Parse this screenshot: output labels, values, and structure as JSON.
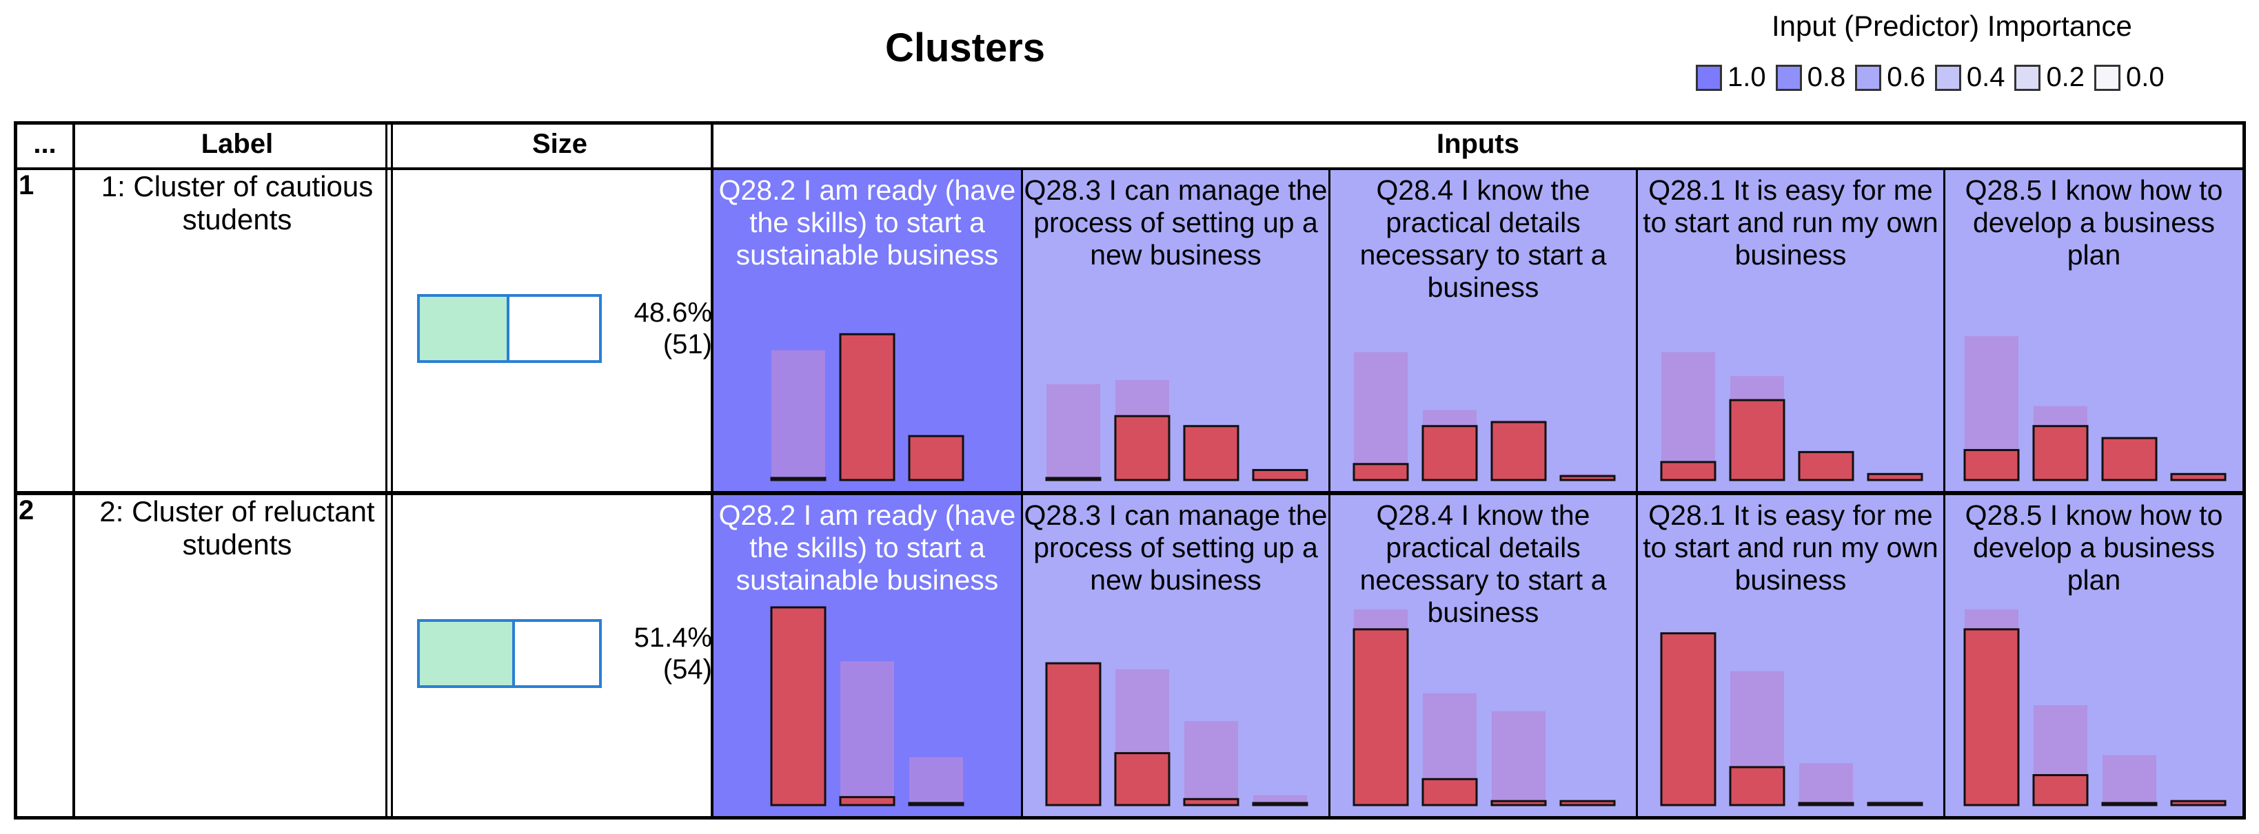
{
  "title": "Clusters",
  "legend": {
    "title": "Input (Predictor) Importance",
    "items": [
      {
        "label": "1.0",
        "color": "#7b7bfb"
      },
      {
        "label": "0.8",
        "color": "#9090fb"
      },
      {
        "label": "0.6",
        "color": "#aaaaf8"
      },
      {
        "label": "0.4",
        "color": "#c4c4f8"
      },
      {
        "label": "0.2",
        "color": "#dcdcf6"
      },
      {
        "label": "0.0",
        "color": "#f6f6fa"
      }
    ]
  },
  "headers": {
    "id": "...",
    "label": "Label",
    "size": "Size",
    "inputs": "Inputs"
  },
  "colors": {
    "bar": "#d64f5e",
    "ghost": "#b48adc"
  },
  "chart_data": {
    "type": "table",
    "inputs": [
      {
        "name": "Q28.2  I am ready (have the skills) to start a sustainable business",
        "importance": 1.0,
        "bg": "#7b7bfb"
      },
      {
        "name": "Q28.3  I can manage the process of setting up a new business",
        "importance": 0.6,
        "bg": "#aaaaf8"
      },
      {
        "name": "Q28.4 I know the practical details necessary to start a business",
        "importance": 0.6,
        "bg": "#aaaaf8"
      },
      {
        "name": "Q28.1  It is easy for me to start and run my own business",
        "importance": 0.6,
        "bg": "#aaaaf8"
      },
      {
        "name": "Q28.5  I know how to develop a business plan",
        "importance": 0.6,
        "bg": "#aaaaf8"
      }
    ],
    "clusters": [
      {
        "id": "1",
        "label": "1: Cluster of cautious students",
        "size_pct": 48.6,
        "size_pct_text": "48.6%",
        "count_text": "(51)",
        "distributions": [
          {
            "cluster": [
              0,
              0.73,
              0.22
            ],
            "overall": [
              0.65,
              0.38,
              0.12
            ]
          },
          {
            "cluster": [
              0,
              0.32,
              0.27,
              0.05
            ],
            "overall": [
              0.48,
              0.5,
              0.27,
              0.04
            ]
          },
          {
            "cluster": [
              0.08,
              0.27,
              0.29,
              0.02
            ],
            "overall": [
              0.64,
              0.35,
              0.3,
              0.03
            ]
          },
          {
            "cluster": [
              0.09,
              0.4,
              0.14,
              0.03
            ],
            "overall": [
              0.64,
              0.52,
              0.14,
              0.03
            ]
          },
          {
            "cluster": [
              0.15,
              0.27,
              0.21,
              0.03
            ],
            "overall": [
              0.72,
              0.37,
              0.21,
              0.03
            ]
          }
        ]
      },
      {
        "id": "2",
        "label": "2: Cluster of reluctant students",
        "size_pct": 51.4,
        "size_pct_text": "51.4%",
        "count_text": "(54)",
        "distributions": [
          {
            "cluster": [
              0.99,
              0.04,
              0
            ],
            "overall": [
              0.66,
              0.72,
              0.24
            ]
          },
          {
            "cluster": [
              0.71,
              0.26,
              0.03,
              0
            ],
            "overall": [
              0.48,
              0.68,
              0.42,
              0.05
            ]
          },
          {
            "cluster": [
              0.88,
              0.13,
              0.02,
              0.02
            ],
            "overall": [
              0.98,
              0.56,
              0.47,
              0.02
            ]
          },
          {
            "cluster": [
              0.86,
              0.19,
              0,
              0
            ],
            "overall": [
              0.83,
              0.67,
              0.21,
              0.02
            ]
          },
          {
            "cluster": [
              0.88,
              0.15,
              0,
              0.02
            ],
            "overall": [
              0.98,
              0.5,
              0.25,
              0.02
            ]
          }
        ]
      }
    ]
  }
}
